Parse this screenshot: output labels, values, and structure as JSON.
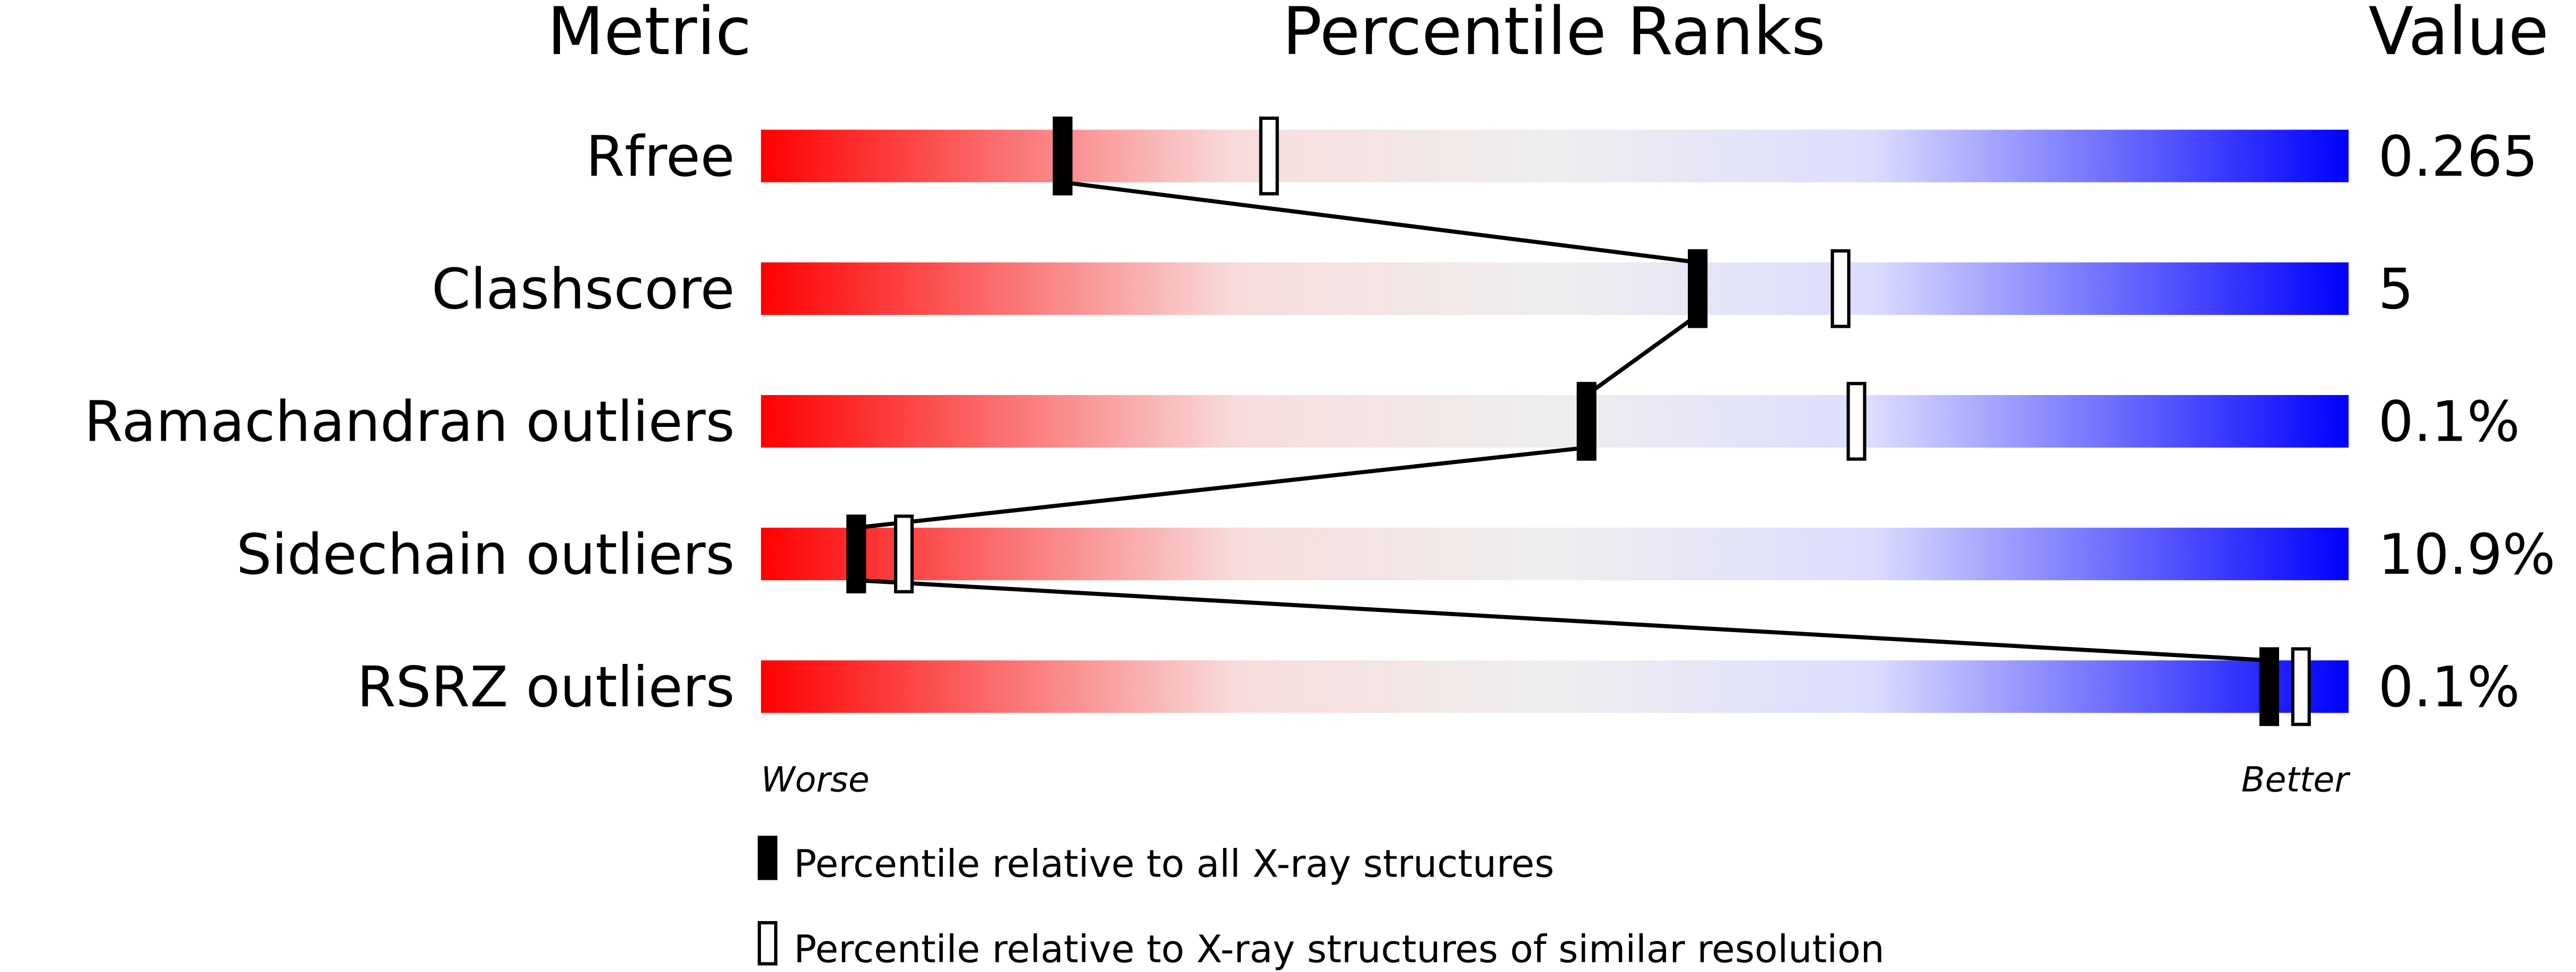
{
  "chart_data": {
    "type": "percentile-slider",
    "headers": {
      "metric": "Metric",
      "ranks": "Percentile Ranks",
      "value": "Value"
    },
    "axis": {
      "left": "Worse",
      "right": "Better",
      "range": [
        0,
        100
      ]
    },
    "gradient_colors": [
      "#ff0000",
      "#f8dcdc",
      "#eeeeee",
      "#dcdcff",
      "#0000ff"
    ],
    "metrics": [
      {
        "name": "Rfree",
        "value": "0.265",
        "percentile_all": 19,
        "percentile_similar": 32
      },
      {
        "name": "Clashscore",
        "value": "5",
        "percentile_all": 59,
        "percentile_similar": 68
      },
      {
        "name": "Ramachandran outliers",
        "value": "0.1%",
        "percentile_all": 52,
        "percentile_similar": 69
      },
      {
        "name": "Sidechain outliers",
        "value": "10.9%",
        "percentile_all": 6,
        "percentile_similar": 9
      },
      {
        "name": "RSRZ outliers",
        "value": "0.1%",
        "percentile_all": 95,
        "percentile_similar": 97
      }
    ],
    "legend": [
      {
        "marker": "filled",
        "label": "Percentile relative to all X-ray structures"
      },
      {
        "marker": "open",
        "label": "Percentile relative to X-ray structures of similar resolution"
      }
    ]
  }
}
